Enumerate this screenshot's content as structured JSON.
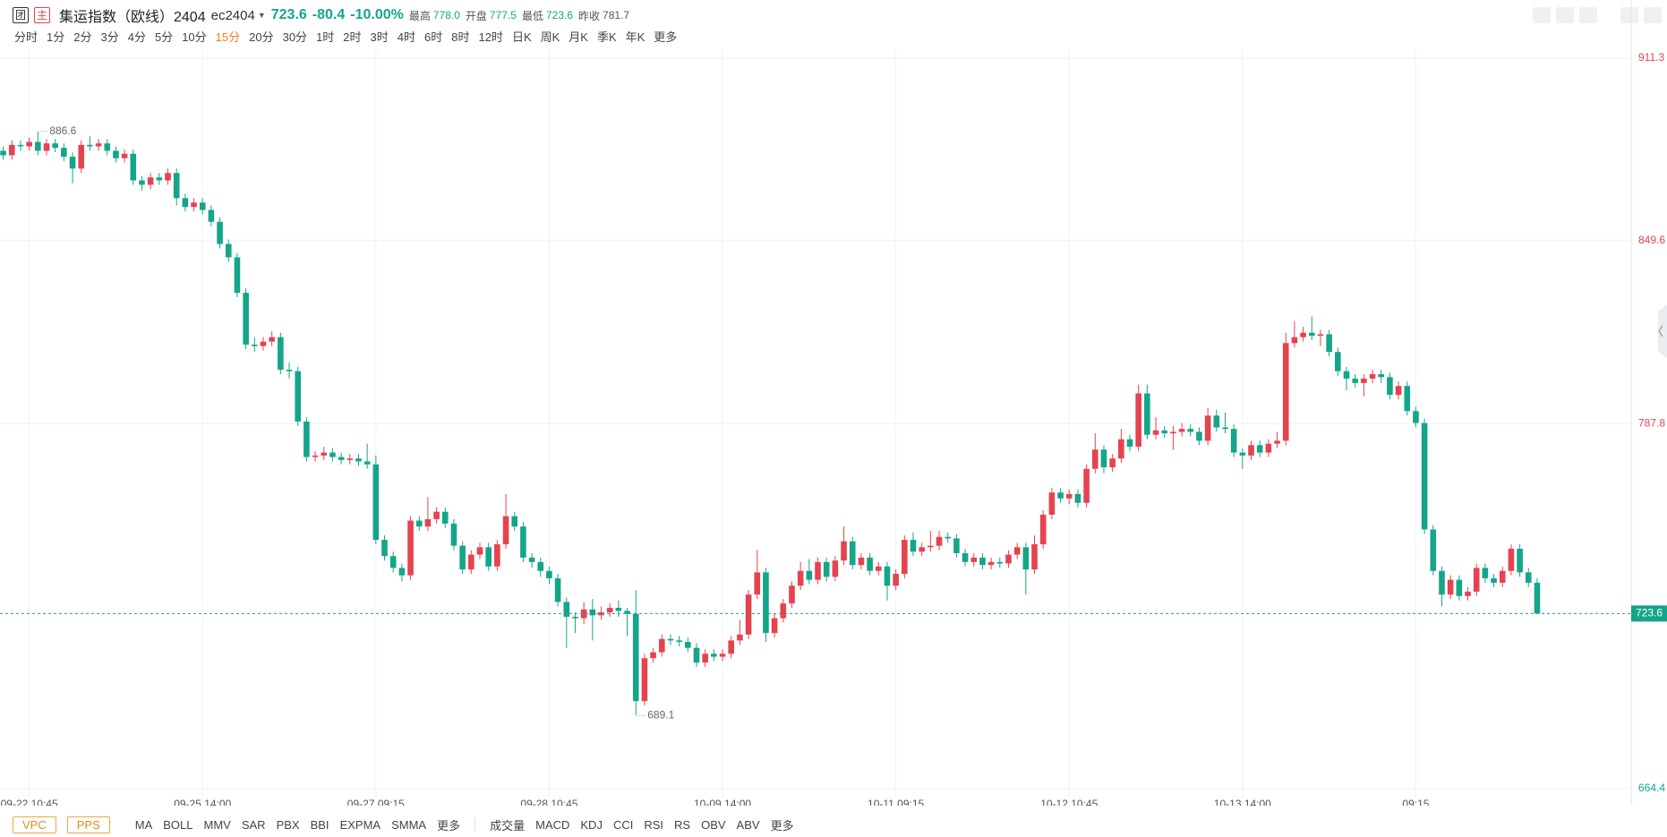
{
  "header": {
    "name": "集运指数（欧线）2404",
    "code": "ec2404",
    "last": "723.6",
    "change": "-80.4",
    "change_pct": "-10.00%",
    "stats": [
      {
        "label": "最高",
        "value": "778.0"
      },
      {
        "label": "开盘",
        "value": "777.5"
      },
      {
        "label": "最低",
        "value": "723.6"
      },
      {
        "label": "昨收",
        "value": "781.7"
      }
    ],
    "badges": [
      "团",
      "主"
    ]
  },
  "periods": [
    "分时",
    "1分",
    "2分",
    "3分",
    "4分",
    "5分",
    "10分",
    "15分",
    "20分",
    "30分",
    "1时",
    "2时",
    "3时",
    "4时",
    "6时",
    "8时",
    "12时",
    "日K",
    "周K",
    "月K",
    "季K",
    "年K",
    "更多"
  ],
  "indicator_bar": {
    "badges": [
      "VPC",
      "PPS"
    ],
    "main": [
      "MA",
      "BOLL",
      "MMV",
      "SAR",
      "PBX",
      "BBI",
      "EXPMA",
      "SMMA",
      "更多"
    ],
    "sub": [
      "成交量",
      "MACD",
      "KDJ",
      "CCI",
      "RSI",
      "RS",
      "OBV",
      "ABV",
      "更多"
    ]
  },
  "chart_data": {
    "type": "candlestick",
    "up_color": "#e5434f",
    "down_color": "#14a58a",
    "prev_close": 781.7,
    "ylim": [
      664.4,
      911.3
    ],
    "yticks": [
      911.3,
      849.6,
      787.8,
      664.4
    ],
    "grid": true,
    "categories": [
      null,
      null,
      null,
      "09-22 10:45",
      null,
      null,
      null,
      null,
      null,
      null,
      null,
      null,
      null,
      null,
      null,
      null,
      null,
      null,
      null,
      null,
      null,
      null,
      null,
      "09-25 14:00",
      null,
      null,
      null,
      null,
      null,
      null,
      null,
      null,
      null,
      null,
      null,
      null,
      null,
      null,
      null,
      null,
      null,
      null,
      null,
      "09-27 09:15",
      null,
      null,
      null,
      null,
      null,
      null,
      null,
      null,
      null,
      null,
      null,
      null,
      null,
      null,
      null,
      null,
      null,
      null,
      null,
      "09-28 10:45",
      null,
      null,
      null,
      null,
      null,
      null,
      null,
      null,
      null,
      null,
      null,
      null,
      null,
      null,
      null,
      null,
      null,
      null,
      null,
      "10-09 14:00",
      null,
      null,
      null,
      null,
      null,
      null,
      null,
      null,
      null,
      null,
      null,
      null,
      null,
      null,
      null,
      null,
      null,
      null,
      null,
      "10-11 09:15",
      null,
      null,
      null,
      null,
      null,
      null,
      null,
      null,
      null,
      null,
      null,
      null,
      null,
      null,
      null,
      null,
      null,
      null,
      null,
      "10-12 10:45",
      null,
      null,
      null,
      null,
      null,
      null,
      null,
      null,
      null,
      null,
      null,
      null,
      null,
      null,
      null,
      null,
      null,
      null,
      null,
      "10-13 14:00",
      null,
      null,
      null,
      null,
      null,
      null,
      null,
      null,
      null,
      null,
      null,
      null,
      null,
      null,
      null,
      null,
      null,
      null,
      null,
      "09:15",
      null,
      null,
      null,
      null,
      null,
      null,
      null,
      null,
      null,
      null,
      null,
      null,
      null,
      null
    ],
    "open": [
      880.0,
      878.5,
      882.0,
      881.5,
      883.0,
      880.0,
      882.5,
      881.0,
      878.0,
      874.0,
      882.0,
      881.5,
      882.5,
      880.0,
      877.5,
      879.0,
      870.0,
      868.5,
      871.0,
      870.0,
      872.5,
      864.0,
      861.0,
      862.5,
      860.0,
      856.0,
      848.5,
      844.0,
      832.0,
      814.5,
      814.0,
      815.5,
      817.0,
      806.0,
      805.5,
      788.5,
      776.5,
      777.0,
      778.0,
      776.5,
      775.5,
      776.0,
      775.0,
      774.0,
      748.5,
      743.0,
      739.0,
      736.5,
      755.0,
      753.0,
      755.5,
      758.0,
      754.0,
      746.5,
      738.5,
      743.5,
      746.0,
      739.5,
      747.0,
      756.5,
      753.0,
      742.5,
      741.0,
      738.0,
      735.5,
      727.5,
      722.5,
      722.0,
      725.0,
      723.0,
      724.0,
      725.5,
      724.5,
      723.5,
      694.0,
      708.5,
      710.5,
      715.0,
      714.5,
      714.0,
      712.0,
      707.0,
      710.0,
      709.0,
      710.0,
      714.5,
      716.5,
      730.0,
      737.5,
      717.0,
      722.0,
      727.0,
      733.0,
      738.0,
      735.0,
      741.0,
      736.0,
      741.5,
      748.0,
      740.0,
      742.5,
      738.0,
      739.5,
      733.0,
      737.0,
      748.5,
      744.5,
      746.0,
      746.5,
      749.5,
      749.0,
      744.0,
      741.0,
      742.5,
      740.0,
      741.0,
      740.5,
      743.5,
      746.0,
      738.5,
      747.0,
      757.0,
      764.5,
      762.5,
      764.0,
      761.0,
      772.5,
      779.0,
      773.0,
      776.0,
      782.5,
      780.0,
      798.0,
      784.0,
      785.5,
      784.5,
      785.0,
      786.0,
      785.0,
      782.0,
      790.5,
      786.5,
      786.0,
      778.0,
      777.0,
      780.5,
      778.0,
      781.0,
      782.0,
      815.0,
      817.0,
      818.5,
      817.5,
      818.0,
      812.0,
      805.5,
      803.0,
      801.5,
      803.0,
      804.5,
      803.5,
      797.5,
      800.5,
      792.0,
      788.0,
      752.0,
      738.0,
      730.0,
      735.0,
      729.5,
      731.0,
      739.0,
      735.5,
      734.0,
      738.0,
      745.5,
      737.5,
      734.0
    ],
    "high": [
      881.5,
      883.5,
      883.5,
      884.5,
      886.6,
      884.0,
      884.0,
      882.5,
      879.5,
      883.5,
      885.0,
      884.0,
      884.0,
      881.5,
      880.5,
      880.5,
      871.5,
      872.5,
      872.5,
      874.0,
      874.0,
      865.5,
      864.0,
      864.0,
      861.5,
      857.5,
      850.0,
      845.5,
      833.5,
      817.0,
      817.0,
      819.0,
      818.5,
      808.5,
      807.0,
      790.0,
      778.5,
      780.0,
      779.5,
      778.0,
      777.5,
      777.5,
      781.0,
      777.0,
      750.0,
      744.5,
      740.5,
      756.5,
      756.5,
      763.0,
      759.5,
      759.5,
      755.5,
      748.0,
      745.0,
      747.5,
      747.5,
      748.5,
      764.0,
      758.0,
      754.5,
      744.0,
      742.5,
      739.5,
      737.0,
      729.0,
      724.0,
      727.5,
      728.5,
      726.0,
      727.0,
      728.0,
      725.5,
      731.5,
      710.0,
      712.0,
      716.5,
      716.5,
      716.0,
      715.5,
      713.5,
      711.5,
      711.5,
      711.5,
      716.0,
      721.5,
      731.5,
      745.0,
      739.0,
      723.5,
      728.5,
      734.5,
      741.0,
      742.0,
      742.5,
      742.5,
      743.0,
      753.0,
      749.5,
      744.0,
      744.0,
      741.0,
      741.0,
      738.5,
      750.0,
      751.0,
      747.5,
      751.5,
      751.5,
      751.0,
      750.5,
      745.5,
      744.0,
      744.0,
      742.5,
      742.5,
      745.0,
      747.5,
      747.5,
      750.0,
      758.5,
      766.0,
      766.0,
      765.5,
      765.5,
      774.0,
      784.5,
      780.5,
      777.5,
      786.0,
      784.0,
      801.0,
      801.0,
      790.0,
      787.0,
      787.0,
      788.0,
      787.5,
      786.5,
      793.0,
      792.5,
      791.5,
      787.5,
      779.5,
      782.0,
      782.0,
      782.5,
      785.0,
      818.5,
      822.5,
      820.5,
      824.0,
      819.5,
      819.5,
      813.5,
      807.0,
      804.5,
      804.5,
      806.0,
      806.0,
      805.0,
      802.0,
      802.0,
      793.5,
      789.5,
      753.5,
      739.5,
      736.5,
      736.5,
      732.5,
      740.5,
      740.5,
      737.0,
      739.5,
      747.0,
      747.0,
      739.0,
      735.5
    ],
    "low": [
      877.0,
      877.0,
      880.0,
      880.0,
      878.5,
      878.5,
      879.5,
      876.5,
      869.0,
      872.5,
      880.0,
      880.0,
      878.5,
      876.0,
      876.0,
      868.5,
      866.5,
      867.0,
      868.5,
      868.5,
      861.5,
      859.5,
      859.5,
      858.5,
      854.5,
      847.0,
      842.5,
      830.5,
      813.0,
      812.0,
      812.5,
      814.0,
      804.5,
      803.0,
      787.0,
      775.0,
      775.0,
      775.5,
      775.0,
      774.0,
      774.0,
      773.5,
      772.5,
      747.0,
      741.5,
      737.5,
      734.5,
      735.0,
      751.5,
      751.5,
      754.0,
      752.5,
      745.0,
      737.0,
      737.0,
      742.0,
      738.0,
      738.0,
      745.5,
      751.5,
      741.0,
      739.0,
      736.0,
      733.5,
      726.0,
      712.0,
      717.0,
      720.0,
      714.5,
      721.5,
      722.5,
      722.5,
      716.0,
      689.1,
      692.5,
      707.0,
      709.0,
      713.0,
      712.5,
      710.5,
      705.5,
      705.5,
      707.5,
      707.5,
      708.5,
      713.0,
      715.0,
      728.5,
      714.0,
      715.5,
      720.5,
      725.5,
      731.5,
      733.5,
      733.5,
      734.5,
      734.5,
      740.0,
      738.5,
      738.5,
      736.5,
      736.5,
      728.0,
      731.5,
      735.5,
      743.0,
      743.0,
      744.5,
      745.0,
      747.5,
      742.5,
      739.5,
      739.5,
      738.5,
      738.5,
      739.0,
      739.0,
      742.0,
      730.0,
      737.0,
      745.5,
      755.5,
      761.0,
      760.5,
      759.5,
      759.5,
      771.0,
      771.0,
      771.5,
      774.5,
      778.5,
      778.5,
      782.5,
      782.5,
      783.0,
      779.0,
      783.5,
      783.5,
      780.5,
      780.5,
      785.0,
      784.5,
      776.5,
      772.5,
      775.5,
      776.5,
      776.5,
      779.5,
      780.5,
      813.5,
      815.5,
      816.0,
      814.0,
      810.5,
      804.0,
      799.0,
      800.0,
      797.0,
      801.5,
      801.5,
      796.0,
      796.0,
      790.5,
      786.5,
      750.5,
      736.5,
      726.0,
      728.5,
      728.0,
      728.0,
      729.5,
      734.0,
      732.5,
      732.5,
      736.5,
      736.0,
      732.5,
      723.6
    ],
    "close": [
      878.5,
      882.0,
      881.5,
      883.0,
      880.0,
      882.5,
      881.0,
      878.0,
      874.0,
      882.0,
      881.5,
      882.5,
      880.0,
      877.5,
      879.0,
      870.0,
      868.5,
      871.0,
      870.0,
      872.5,
      864.0,
      861.0,
      862.5,
      860.0,
      856.0,
      848.5,
      844.0,
      832.0,
      814.5,
      814.0,
      815.5,
      817.0,
      806.0,
      805.5,
      788.5,
      776.5,
      777.0,
      778.0,
      776.5,
      775.5,
      776.0,
      775.0,
      774.0,
      748.5,
      743.0,
      739.0,
      736.5,
      755.0,
      753.0,
      755.5,
      758.0,
      754.0,
      746.5,
      738.5,
      743.5,
      746.0,
      739.5,
      747.0,
      756.5,
      753.0,
      742.5,
      741.0,
      738.0,
      735.5,
      727.5,
      722.5,
      722.0,
      725.0,
      723.0,
      724.0,
      725.5,
      724.5,
      723.5,
      694.0,
      708.5,
      710.5,
      715.0,
      714.5,
      714.0,
      712.0,
      707.0,
      710.0,
      709.0,
      710.0,
      714.5,
      716.5,
      730.0,
      737.5,
      717.0,
      722.0,
      727.0,
      733.0,
      738.0,
      735.0,
      741.0,
      736.0,
      741.5,
      748.0,
      740.0,
      742.5,
      738.0,
      739.5,
      733.0,
      737.0,
      748.5,
      744.5,
      746.0,
      746.5,
      749.5,
      749.0,
      744.0,
      741.0,
      742.5,
      740.0,
      741.0,
      740.5,
      743.5,
      746.0,
      738.5,
      747.0,
      757.0,
      764.5,
      762.5,
      764.0,
      761.0,
      772.5,
      779.0,
      773.0,
      776.0,
      782.5,
      780.0,
      798.0,
      784.0,
      785.5,
      784.5,
      785.0,
      786.0,
      785.0,
      782.0,
      790.5,
      786.5,
      786.0,
      778.0,
      777.0,
      780.5,
      778.0,
      781.0,
      782.0,
      815.0,
      817.0,
      818.5,
      817.5,
      818.0,
      812.0,
      805.5,
      803.0,
      801.5,
      803.0,
      804.5,
      803.5,
      797.5,
      800.5,
      792.0,
      788.0,
      752.0,
      738.0,
      730.0,
      735.0,
      729.5,
      731.0,
      739.0,
      735.5,
      734.0,
      738.0,
      745.5,
      737.5,
      734.0,
      723.6
    ]
  }
}
